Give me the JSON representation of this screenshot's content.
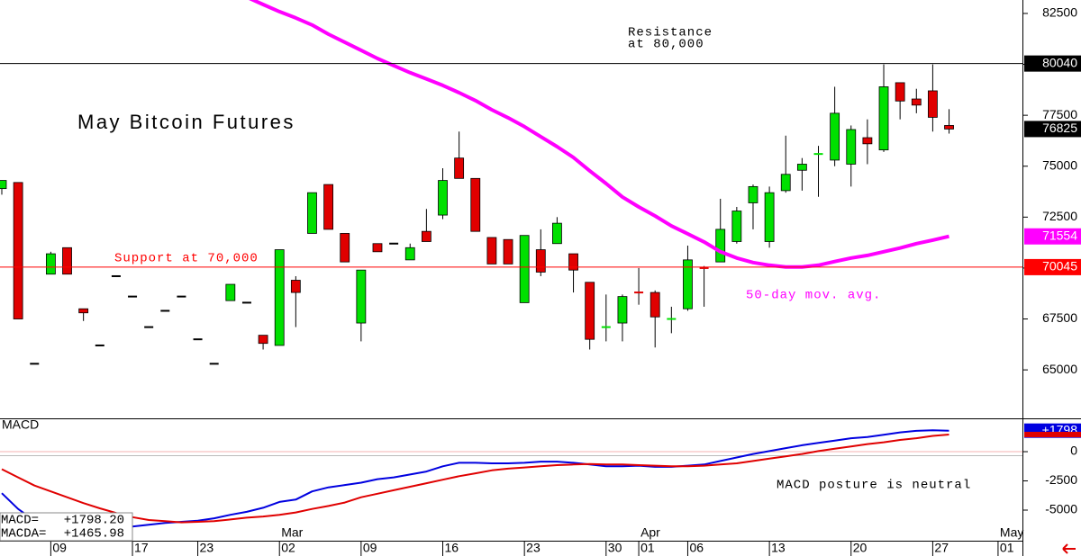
{
  "chart_data": {
    "type": "candlestick",
    "title": "May Bitcoin Futures",
    "categories": [
      null,
      null,
      null,
      "09",
      null,
      null,
      null,
      null,
      "17",
      null,
      null,
      null,
      "23",
      null,
      null,
      null,
      null,
      "02",
      null,
      null,
      null,
      null,
      "09",
      null,
      null,
      null,
      null,
      "16",
      null,
      null,
      null,
      null,
      "23",
      null,
      null,
      null,
      null,
      "30",
      null,
      "01",
      null,
      null,
      "06",
      null,
      null,
      null,
      null,
      "13",
      null,
      null,
      null,
      null,
      "20",
      null,
      null,
      null,
      null,
      "27",
      null,
      null,
      null,
      "01"
    ],
    "months": [
      null,
      null,
      null,
      null,
      null,
      null,
      null,
      null,
      null,
      null,
      null,
      null,
      null,
      null,
      null,
      null,
      null,
      "Mar",
      null,
      null,
      null,
      null,
      null,
      null,
      null,
      null,
      null,
      null,
      null,
      null,
      null,
      null,
      null,
      null,
      null,
      null,
      null,
      null,
      null,
      "Apr",
      null,
      null,
      null,
      null,
      null,
      null,
      null,
      null,
      null,
      null,
      null,
      null,
      null,
      null,
      null,
      null,
      null,
      null,
      null,
      null,
      null,
      "May"
    ],
    "open": [
      73900,
      74200,
      65300,
      69700,
      71000,
      68000,
      66200,
      69600,
      68600,
      67100,
      67900,
      68600,
      66500,
      65300,
      68400,
      68300,
      66700,
      66200,
      69400,
      71700,
      74100,
      71700,
      67300,
      71200,
      71200,
      70400,
      71800,
      72600,
      75400,
      74400,
      71500,
      71400,
      68300,
      70900,
      71200,
      70700,
      69300,
      67100,
      67300,
      68800,
      68800,
      67500,
      68000,
      70000,
      70300,
      71300,
      73200,
      71300,
      73800,
      74800,
      75600,
      75300,
      75100,
      76400,
      75800,
      79100,
      78300,
      78700,
      77000,
      null,
      null,
      null
    ],
    "high": [
      74300,
      74200,
      65300,
      70800,
      71000,
      68000,
      66200,
      69600,
      68600,
      67100,
      67900,
      68600,
      66500,
      65300,
      69200,
      68300,
      66700,
      70900,
      69600,
      73700,
      74100,
      71700,
      69900,
      71200,
      71200,
      71200,
      72900,
      74900,
      76700,
      74400,
      71500,
      71400,
      71600,
      71900,
      72500,
      70700,
      69300,
      68700,
      68700,
      70000,
      68900,
      68100,
      71100,
      70100,
      73400,
      73000,
      74100,
      74000,
      76500,
      75400,
      76000,
      78900,
      77000,
      77300,
      80000,
      79100,
      78800,
      80000,
      77800,
      null,
      null,
      null
    ],
    "low": [
      73600,
      67500,
      65300,
      69700,
      69700,
      67400,
      66200,
      69600,
      68600,
      67100,
      67900,
      68600,
      66500,
      65300,
      68400,
      68300,
      66000,
      66200,
      67100,
      71700,
      71900,
      70300,
      66400,
      70800,
      71200,
      70400,
      71300,
      72400,
      74400,
      71800,
      70200,
      70200,
      68300,
      69600,
      71200,
      68800,
      66000,
      66400,
      66400,
      68200,
      66100,
      66800,
      67900,
      68100,
      70300,
      71200,
      71900,
      71000,
      73700,
      73800,
      73500,
      75000,
      74000,
      75100,
      75700,
      77300,
      77600,
      76700,
      76600,
      null,
      null,
      null
    ],
    "close": [
      74300,
      67500,
      65300,
      70700,
      69700,
      67800,
      66200,
      69600,
      68600,
      67100,
      67900,
      68600,
      66500,
      65300,
      69200,
      68300,
      66300,
      70900,
      68800,
      73700,
      71900,
      70300,
      69900,
      70800,
      71200,
      71000,
      71300,
      74300,
      74400,
      71800,
      70200,
      70200,
      71600,
      69800,
      72200,
      69900,
      66500,
      67100,
      68600,
      68800,
      67600,
      67500,
      70400,
      70000,
      71900,
      72800,
      74000,
      73700,
      74600,
      75100,
      75600,
      77600,
      76800,
      76100,
      78900,
      78200,
      78000,
      77400,
      76825,
      null,
      null,
      null
    ],
    "colors": [
      "#00e000",
      "#e00000",
      "#000000",
      "#00e000",
      "#e00000",
      "#e00000",
      "#000000",
      "#000000",
      "#000000",
      "#000000",
      "#000000",
      "#000000",
      "#000000",
      "#000000",
      "#00e000",
      "#000000",
      "#e00000",
      "#00e000",
      "#e00000",
      "#00e000",
      "#e00000",
      "#e00000",
      "#00e000",
      "#e00000",
      "#000000",
      "#00e000",
      "#e00000",
      "#00e000",
      "#e00000",
      "#e00000",
      "#e00000",
      "#e00000",
      "#00e000",
      "#e00000",
      "#00e000",
      "#e00000",
      "#e00000",
      "#00e000",
      "#00e000",
      "#e00000",
      "#e00000",
      "#00e000",
      "#00e000",
      "#e00000",
      "#00e000",
      "#00e000",
      "#00e000",
      "#00e000",
      "#00e000",
      "#00e000",
      "#00e000",
      "#00e000",
      "#00e000",
      "#e00000",
      "#00e000",
      "#e00000",
      "#e00000",
      "#e00000",
      "#e00000",
      null,
      null,
      null
    ],
    "last_price_color": "#000000",
    "moving_average": {
      "label": "50-day mov. avg.",
      "color": "#ff00ff",
      "values": [
        null,
        null,
        null,
        null,
        null,
        null,
        null,
        null,
        null,
        null,
        null,
        null,
        null,
        null,
        null,
        83300,
        82940,
        82590,
        82280,
        81930,
        81480,
        81090,
        80690,
        80290,
        79940,
        79590,
        79280,
        78970,
        78610,
        78220,
        77770,
        77380,
        76940,
        76450,
        75960,
        75430,
        74770,
        74150,
        73490,
        73000,
        72560,
        72070,
        71680,
        71280,
        70800,
        70490,
        70270,
        70140,
        70050,
        70050,
        70140,
        70320,
        70490,
        70620,
        70800,
        70980,
        71200,
        71370,
        71554,
        null,
        null,
        null
      ]
    },
    "resistance": {
      "value": 80040,
      "color": "#000000",
      "label": [
        "Resistance",
        "at 80,000"
      ]
    },
    "support": {
      "value": 70045,
      "color": "#ff0000",
      "label": "Support at 70,000"
    },
    "ylim": [
      62620,
      83160
    ],
    "yticks": [
      65000,
      67500,
      70000,
      72500,
      75000,
      77500,
      80000,
      82500
    ],
    "macd": {
      "title": "MACD",
      "annotation": "MACD posture is neutral",
      "ylim": [
        -7540,
        2850
      ],
      "yticks": [
        -5000,
        -2500,
        0
      ],
      "series": [
        {
          "name": "MACD=",
          "color": "#0000e0",
          "value_label": "+1798.20",
          "marker_label": "+1798",
          "values": [
            -3550,
            -4900,
            -5900,
            -6300,
            -6400,
            -6450,
            -6450,
            -6450,
            -6400,
            -6250,
            -6100,
            -6000,
            -5900,
            -5700,
            -5400,
            -5150,
            -4800,
            -4300,
            -4100,
            -3400,
            -3050,
            -2850,
            -2650,
            -2350,
            -2200,
            -1950,
            -1700,
            -1250,
            -950,
            -950,
            -1000,
            -1000,
            -950,
            -850,
            -850,
            -950,
            -1100,
            -1250,
            -1250,
            -1200,
            -1300,
            -1300,
            -1200,
            -1100,
            -800,
            -500,
            -200,
            50,
            300,
            550,
            750,
            950,
            1150,
            1250,
            1450,
            1650,
            1780,
            1830,
            1798.2,
            null,
            null,
            null
          ]
        },
        {
          "name": "MACDA=",
          "color": "#e00000",
          "value_label": "+1465.98",
          "values": [
            -1500,
            -2200,
            -2900,
            -3400,
            -3900,
            -4400,
            -4850,
            -5250,
            -5600,
            -5850,
            -5950,
            -6050,
            -6000,
            -5950,
            -5800,
            -5650,
            -5550,
            -5400,
            -5200,
            -4900,
            -4650,
            -4350,
            -3900,
            -3600,
            -3300,
            -3000,
            -2700,
            -2400,
            -2100,
            -1850,
            -1600,
            -1450,
            -1350,
            -1250,
            -1150,
            -1100,
            -1050,
            -1100,
            -1100,
            -1150,
            -1200,
            -1250,
            -1250,
            -1200,
            -1100,
            -1000,
            -800,
            -600,
            -400,
            -200,
            50,
            250,
            450,
            650,
            800,
            1000,
            1150,
            1350,
            1465.98,
            null,
            null,
            null
          ]
        }
      ]
    }
  }
}
